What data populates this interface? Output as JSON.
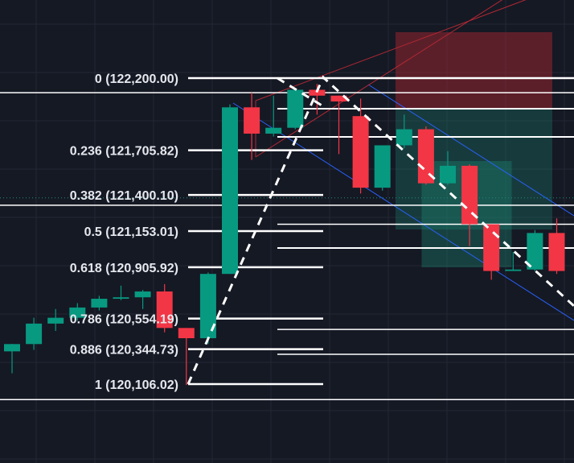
{
  "chart_data": {
    "type": "candlestick",
    "price_range": [
      119650,
      122850
    ],
    "colors": {
      "background": "#151924",
      "grid": "#222733",
      "up": "#089981",
      "down": "#f23645",
      "fib_line": "#ffffff",
      "trend_channel": "#2962ff",
      "target_zone": "#1e8c78",
      "stop_zone": "#b22833",
      "dashed_path": "#ffffff",
      "dotted_level": "#1e8c78"
    },
    "fib_levels": [
      {
        "label": "0 (122,200.00)",
        "ratio": 0,
        "price": 122200.0
      },
      {
        "label": "0.236 (121,705.82)",
        "ratio": 0.236,
        "price": 121705.82
      },
      {
        "label": "0.382 (121,400.10)",
        "ratio": 0.382,
        "price": 121400.1
      },
      {
        "label": "0.5 (121,153.01)",
        "ratio": 0.5,
        "price": 121153.01
      },
      {
        "label": "0.618 (120,905.92)",
        "ratio": 0.618,
        "price": 120905.92
      },
      {
        "label": "0.786 (120,554.19)",
        "ratio": 0.786,
        "price": 120554.19
      },
      {
        "label": "0.886 (120,344.73)",
        "ratio": 0.886,
        "price": 120344.73
      },
      {
        "label": "1 (120,106.02)",
        "ratio": 1,
        "price": 120106.02
      }
    ],
    "horizontal_lines": [
      122100,
      121990,
      121330,
      121200,
      120480,
      120310,
      120000
    ],
    "dotted_level": 121380,
    "candles": [
      {
        "o": 120330,
        "h": 120380,
        "l": 120180,
        "c": 120380
      },
      {
        "o": 120380,
        "h": 120560,
        "l": 120340,
        "c": 120520
      },
      {
        "o": 120520,
        "h": 120620,
        "l": 120470,
        "c": 120560
      },
      {
        "o": 120560,
        "h": 120660,
        "l": 120540,
        "c": 120630
      },
      {
        "o": 120630,
        "h": 120710,
        "l": 120610,
        "c": 120690
      },
      {
        "o": 120690,
        "h": 120780,
        "l": 120680,
        "c": 120700
      },
      {
        "o": 120700,
        "h": 120750,
        "l": 120620,
        "c": 120740
      },
      {
        "o": 120740,
        "h": 120790,
        "l": 120460,
        "c": 120490
      },
      {
        "o": 120490,
        "h": 120490,
        "l": 120100,
        "c": 120420
      },
      {
        "o": 120420,
        "h": 120870,
        "l": 120380,
        "c": 120860
      },
      {
        "o": 120860,
        "h": 122020,
        "l": 120860,
        "c": 122000
      },
      {
        "o": 122000,
        "h": 122100,
        "l": 121640,
        "c": 121820
      },
      {
        "o": 121820,
        "h": 122080,
        "l": 121800,
        "c": 121860
      },
      {
        "o": 121860,
        "h": 122130,
        "l": 121850,
        "c": 122120
      },
      {
        "o": 122120,
        "h": 122160,
        "l": 121950,
        "c": 122080
      },
      {
        "o": 122080,
        "h": 122080,
        "l": 121680,
        "c": 122040
      },
      {
        "o": 121940,
        "h": 122060,
        "l": 121410,
        "c": 121450
      },
      {
        "o": 121450,
        "h": 121740,
        "l": 121430,
        "c": 121740
      },
      {
        "o": 121740,
        "h": 121950,
        "l": 121720,
        "c": 121850
      },
      {
        "o": 121850,
        "h": 121870,
        "l": 121470,
        "c": 121480
      },
      {
        "o": 121480,
        "h": 121700,
        "l": 121470,
        "c": 121600
      },
      {
        "o": 121600,
        "h": 121610,
        "l": 121050,
        "c": 121200
      },
      {
        "o": 121200,
        "h": 121200,
        "l": 120820,
        "c": 120880
      },
      {
        "o": 120880,
        "h": 121010,
        "l": 120880,
        "c": 120890
      },
      {
        "o": 120890,
        "h": 121160,
        "l": 120880,
        "c": 121140
      },
      {
        "o": 121140,
        "h": 121240,
        "l": 120860,
        "c": 120880
      }
    ]
  }
}
